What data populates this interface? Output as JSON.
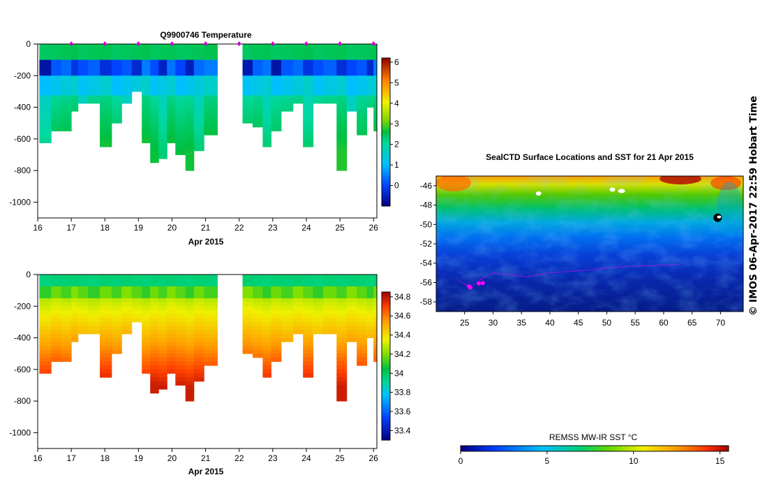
{
  "chart_data": [
    {
      "type": "heatmap",
      "title": "Q9900746  Temperature",
      "xlabel": "Apr 2015",
      "ylabel": "",
      "xlim": [
        16,
        26.1
      ],
      "ylim": [
        -1100,
        0
      ],
      "x_ticks": [
        "16",
        "17",
        "18",
        "19",
        "20",
        "21",
        "22",
        "23",
        "24",
        "25",
        "26"
      ],
      "y_ticks": [
        "0",
        "-200",
        "-400",
        "-600",
        "-800",
        "-1000"
      ],
      "profile_times": [
        16.05,
        16.4,
        16.7,
        17.0,
        17.2,
        17.5,
        17.85,
        18.2,
        18.5,
        18.8,
        19.1,
        19.35,
        19.6,
        19.85,
        20.1,
        20.4,
        20.65,
        20.95,
        22.1,
        22.4,
        22.7,
        22.95,
        23.25,
        23.6,
        23.9,
        24.2,
        24.5,
        24.9,
        25.2,
        25.5,
        25.8,
        26.0
      ],
      "profile_max_depths": [
        -620,
        -530,
        -540,
        -410,
        -360,
        -360,
        -640,
        -480,
        -370,
        -280,
        -610,
        -750,
        -710,
        -620,
        -700,
        -780,
        -660,
        -570,
        -500,
        -510,
        -640,
        -540,
        -410,
        -360,
        -640,
        -360,
        -360,
        -800,
        -420,
        -570,
        -400,
        -550
      ],
      "surface_markers_days": [
        17,
        18,
        19,
        20,
        21,
        22,
        23,
        24,
        25,
        26
      ],
      "gap_days": [
        21.35,
        21.85
      ],
      "colorbar": {
        "min": -1,
        "max": 6.2,
        "ticks": [
          "0",
          "1",
          "2",
          "3",
          "4",
          "5",
          "6"
        ]
      },
      "value_range": "about 2.5 °C in the mixed layer and below, minimum about -1 °C in the 100 to 200 m winter-water layer"
    },
    {
      "type": "heatmap",
      "title": "",
      "xlabel": "Apr 2015",
      "ylabel": "",
      "xlim": [
        16,
        26.1
      ],
      "ylim": [
        -1100,
        0
      ],
      "x_ticks": [
        "16",
        "17",
        "18",
        "19",
        "20",
        "21",
        "22",
        "23",
        "24",
        "25",
        "26"
      ],
      "y_ticks": [
        "0",
        "-200",
        "-400",
        "-600",
        "-800",
        "-1000"
      ],
      "colorbar": {
        "min": 33.3,
        "max": 34.85,
        "ticks": [
          "33.4",
          "33.6",
          "33.8",
          "34",
          "34.2",
          "34.4",
          "34.6",
          "34.8"
        ]
      },
      "value_range": "salinity about 33.9 at the surface rising to about 34.75 below 600 m"
    },
    {
      "type": "map",
      "title": "SealCTD Surface Locations and SST for 21 Apr 2015",
      "x_ticks": [
        "25",
        "30",
        "35",
        "40",
        "45",
        "50",
        "55",
        "60",
        "65",
        "70"
      ],
      "y_ticks": [
        "-46",
        "-48",
        "-50",
        "-52",
        "-54",
        "-56",
        "-58"
      ],
      "xlim": [
        20,
        74
      ],
      "ylim": [
        -59,
        -45
      ],
      "colorbar": {
        "label": "REMSS MW-IR SST °C",
        "min": 0,
        "max": 15.5,
        "ticks": [
          "0",
          "5",
          "10",
          "15"
        ]
      },
      "track_lon": [
        24,
        26,
        28,
        30,
        33,
        36,
        40,
        45,
        50,
        55,
        60,
        63
      ],
      "track_lat": [
        -55.8,
        -56.5,
        -55.6,
        -55.0,
        -55.2,
        -55.4,
        -55.0,
        -54.8,
        -54.5,
        -54.3,
        -54.2,
        -54.1
      ],
      "island_positions_lon_lat": [
        [
          38,
          -46.8
        ],
        [
          51,
          -46.4
        ],
        [
          69.5,
          -49.3
        ]
      ]
    }
  ],
  "credit": "© IMOS 06-Apr-2017 22:59 Hobart Time",
  "colors": {
    "track": "#ff00ff",
    "marker": "#cc00cc",
    "land_black": "#000000",
    "gap": "#ffffff"
  }
}
